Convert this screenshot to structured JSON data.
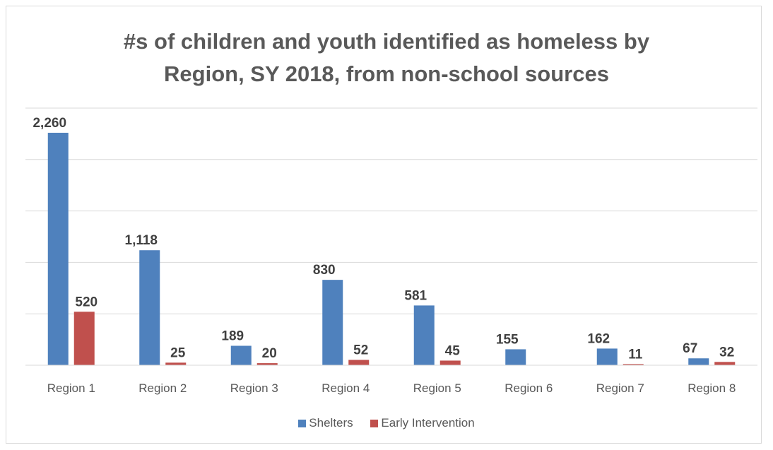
{
  "chart_data": {
    "type": "bar",
    "title_line1": "#s of children and youth identified as homeless by",
    "title_line2": "Region, SY 2018, from non-school sources",
    "categories": [
      "Region 1",
      "Region 2",
      "Region 3",
      "Region 4",
      "Region 5",
      "Region 6",
      "Region 7",
      "Region 8"
    ],
    "series": [
      {
        "name": "Shelters",
        "color": "#4f81bd",
        "values": [
          2260,
          1118,
          189,
          830,
          581,
          155,
          162,
          67
        ],
        "labels": [
          "2,260",
          "1,118",
          "189",
          "830",
          "581",
          "155",
          "162",
          "67"
        ]
      },
      {
        "name": "Early Intervention",
        "color": "#c0504d",
        "values": [
          520,
          25,
          20,
          52,
          45,
          null,
          11,
          32
        ],
        "labels": [
          "520",
          "25",
          "20",
          "52",
          "45",
          "",
          "11",
          "32"
        ]
      }
    ],
    "ylim": [
      0,
      2500
    ],
    "grid": true,
    "legend_position": "bottom"
  }
}
